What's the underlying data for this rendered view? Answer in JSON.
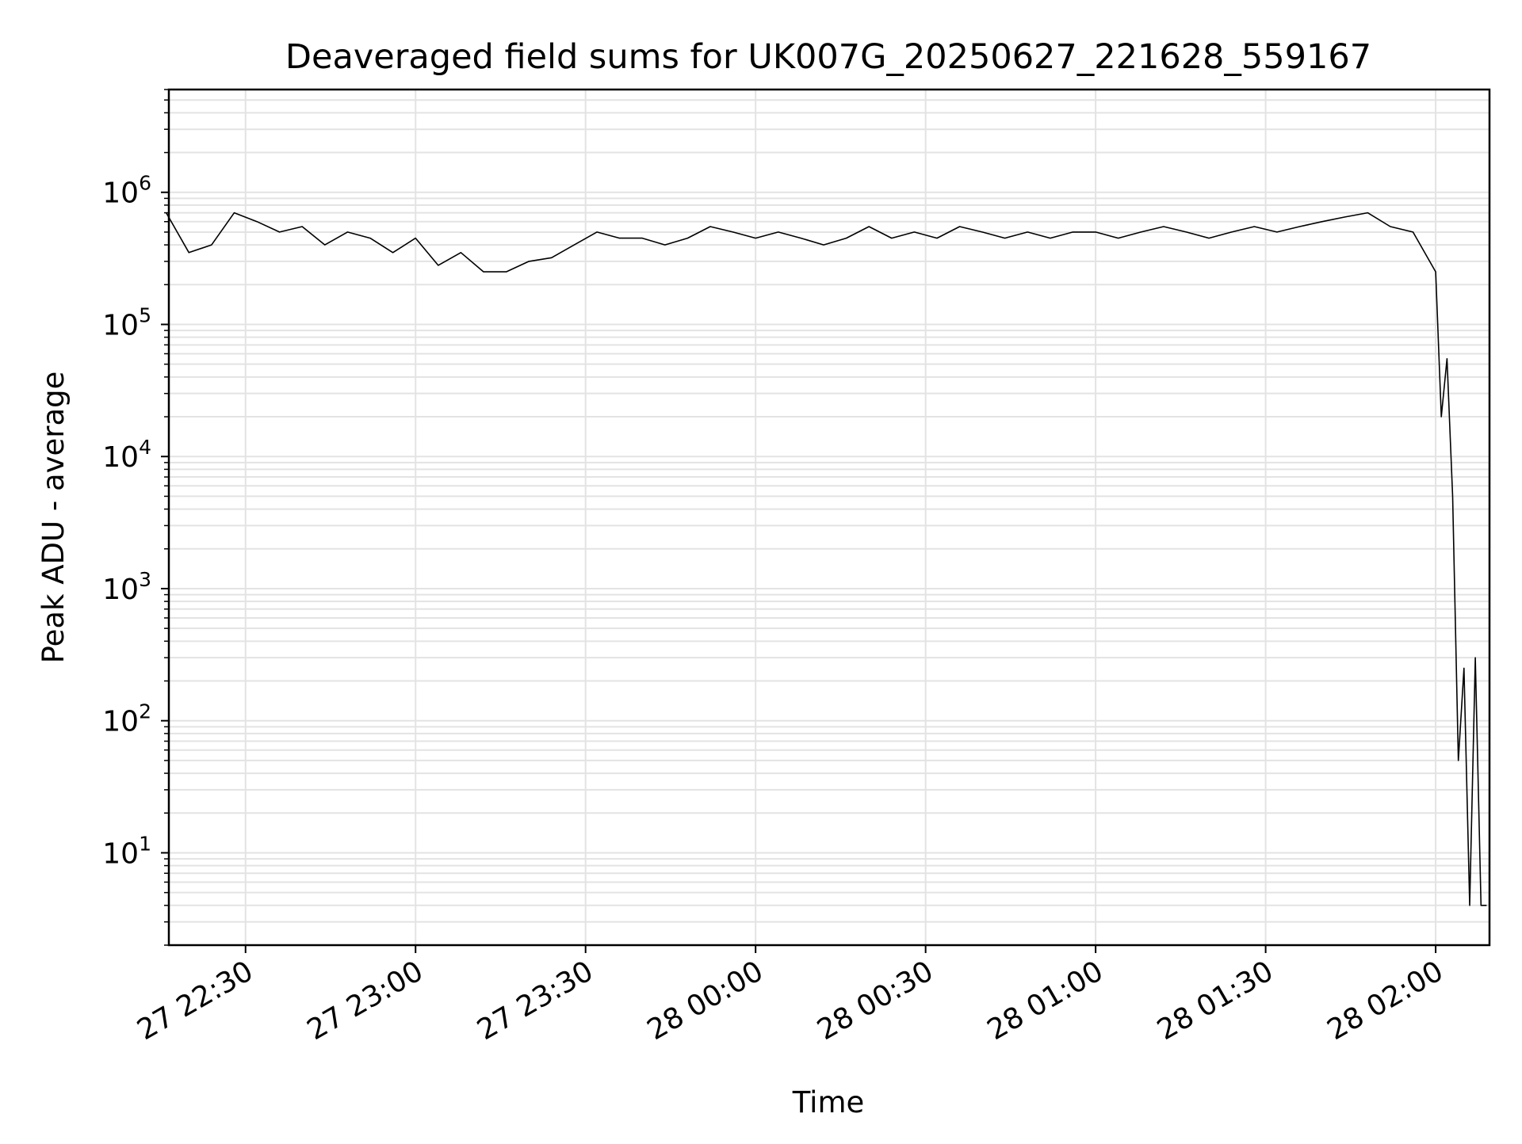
{
  "chart_data": {
    "type": "line",
    "title": "Deaveraged field sums for UK007G_20250627_221628_559167",
    "xlabel": "Time",
    "ylabel": "Peak ADU - average",
    "yscale": "log",
    "ylim": [
      2,
      6000000
    ],
    "xlim": [
      "2025-06-27 22:16:28",
      "2025-06-28 02:09:30"
    ],
    "grid": true,
    "legend": "none",
    "line_color": "#000000",
    "grid_color": "#e3e3e3",
    "x_ticks": [
      {
        "value": "2025-06-27 22:30",
        "label": "27 22:30"
      },
      {
        "value": "2025-06-27 23:00",
        "label": "27 23:00"
      },
      {
        "value": "2025-06-27 23:30",
        "label": "27 23:30"
      },
      {
        "value": "2025-06-28 00:00",
        "label": "28 00:00"
      },
      {
        "value": "2025-06-28 00:30",
        "label": "28 00:30"
      },
      {
        "value": "2025-06-28 01:00",
        "label": "28 01:00"
      },
      {
        "value": "2025-06-28 01:30",
        "label": "28 01:30"
      },
      {
        "value": "2025-06-28 02:00",
        "label": "28 02:00"
      }
    ],
    "y_ticks": [
      {
        "value": 10,
        "base": "10",
        "exp": "1"
      },
      {
        "value": 100,
        "base": "10",
        "exp": "2"
      },
      {
        "value": 1000,
        "base": "10",
        "exp": "3"
      },
      {
        "value": 10000,
        "base": "10",
        "exp": "4"
      },
      {
        "value": 100000,
        "base": "10",
        "exp": "5"
      },
      {
        "value": 1000000,
        "base": "10",
        "exp": "6"
      }
    ],
    "series": [
      {
        "x": [
          "2025-06-27 22:16",
          "2025-06-27 22:20",
          "2025-06-27 22:24",
          "2025-06-27 22:28",
          "2025-06-27 22:32",
          "2025-06-27 22:36",
          "2025-06-27 22:40",
          "2025-06-27 22:44",
          "2025-06-27 22:48",
          "2025-06-27 22:52",
          "2025-06-27 22:56",
          "2025-06-27 23:00",
          "2025-06-27 23:04",
          "2025-06-27 23:08",
          "2025-06-27 23:12",
          "2025-06-27 23:16",
          "2025-06-27 23:20",
          "2025-06-27 23:24",
          "2025-06-27 23:28",
          "2025-06-27 23:32",
          "2025-06-27 23:36",
          "2025-06-27 23:40",
          "2025-06-27 23:44",
          "2025-06-27 23:48",
          "2025-06-27 23:52",
          "2025-06-27 23:56",
          "2025-06-28 00:00",
          "2025-06-28 00:04",
          "2025-06-28 00:08",
          "2025-06-28 00:12",
          "2025-06-28 00:16",
          "2025-06-28 00:20",
          "2025-06-28 00:24",
          "2025-06-28 00:28",
          "2025-06-28 00:32",
          "2025-06-28 00:36",
          "2025-06-28 00:40",
          "2025-06-28 00:44",
          "2025-06-28 00:48",
          "2025-06-28 00:52",
          "2025-06-28 00:56",
          "2025-06-28 01:00",
          "2025-06-28 01:04",
          "2025-06-28 01:08",
          "2025-06-28 01:12",
          "2025-06-28 01:16",
          "2025-06-28 01:20",
          "2025-06-28 01:24",
          "2025-06-28 01:28",
          "2025-06-28 01:32",
          "2025-06-28 01:36",
          "2025-06-28 01:40",
          "2025-06-28 01:44",
          "2025-06-28 01:48",
          "2025-06-28 01:52",
          "2025-06-28 01:56",
          "2025-06-28 02:00",
          "2025-06-28 02:01",
          "2025-06-28 02:02",
          "2025-06-28 02:03",
          "2025-06-28 02:04",
          "2025-06-28 02:05",
          "2025-06-28 02:06",
          "2025-06-28 02:07",
          "2025-06-28 02:08",
          "2025-06-28 02:09"
        ],
        "y": [
          700000,
          350000,
          400000,
          700000,
          600000,
          500000,
          550000,
          400000,
          500000,
          450000,
          350000,
          450000,
          280000,
          350000,
          250000,
          250000,
          300000,
          320000,
          400000,
          500000,
          450000,
          450000,
          400000,
          450000,
          550000,
          500000,
          450000,
          500000,
          450000,
          400000,
          450000,
          550000,
          450000,
          500000,
          450000,
          550000,
          500000,
          450000,
          500000,
          450000,
          500000,
          500000,
          450000,
          500000,
          550000,
          500000,
          450000,
          500000,
          550000,
          500000,
          550000,
          600000,
          650000,
          700000,
          550000,
          500000,
          250000,
          20000,
          55000,
          5000,
          50,
          250,
          4,
          300,
          4,
          4
        ]
      }
    ]
  }
}
